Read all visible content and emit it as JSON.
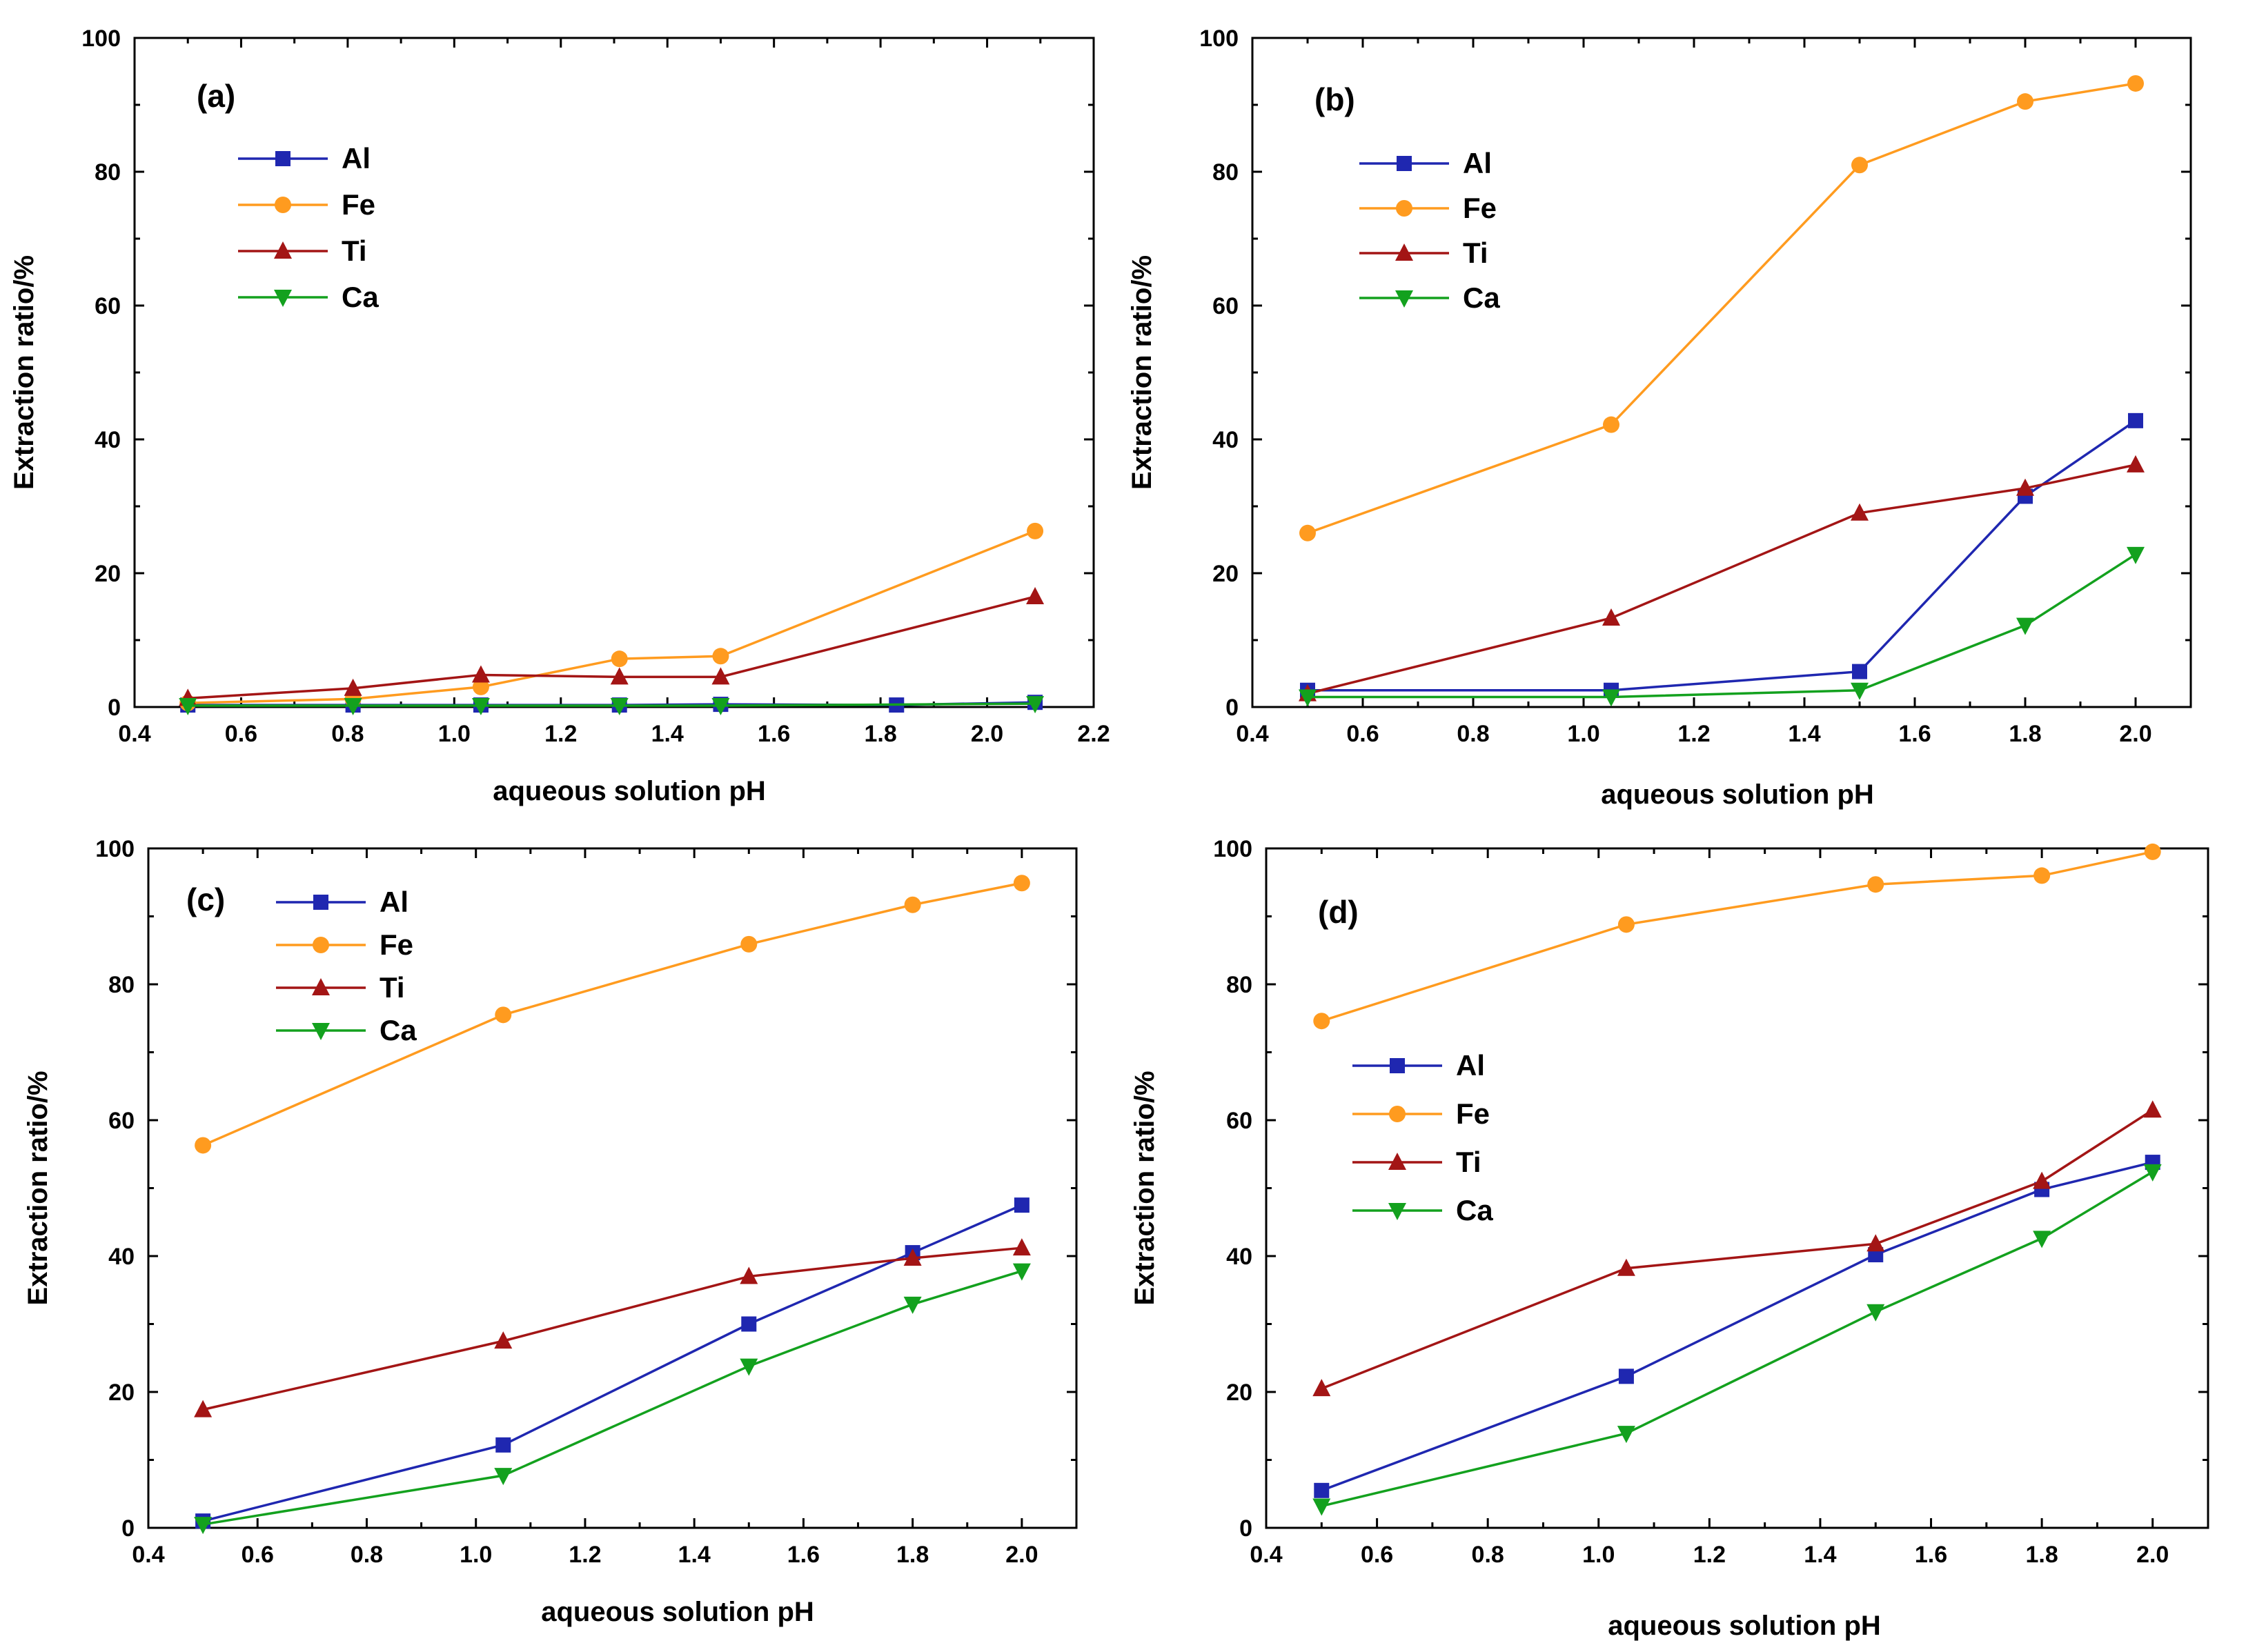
{
  "colors": {
    "Al": "#1f27b0",
    "Fe": "#ff9b1f",
    "Ti": "#a31515",
    "Ca": "#13a11e"
  },
  "chart_data": [
    {
      "type": "line",
      "panel": "(a)",
      "xlabel": "aqueous solution pH",
      "ylabel": "Extraction ratio/%",
      "xlim": [
        0.4,
        2.2
      ],
      "ylim": [
        0,
        100
      ],
      "xticks": [
        "0.4",
        "0.6",
        "0.8",
        "1.0",
        "1.2",
        "1.4",
        "1.6",
        "1.8",
        "2.0",
        "2.2"
      ],
      "yticks": [
        "0",
        "20",
        "40",
        "60",
        "80",
        "100"
      ],
      "legend": [
        "Al",
        "Fe",
        "Ti",
        "Ca"
      ],
      "series": [
        {
          "name": "Al",
          "x": [
            0.5,
            0.81,
            1.05,
            1.31,
            1.5,
            1.83,
            2.09
          ],
          "y": [
            0.3,
            0.3,
            0.3,
            0.3,
            0.4,
            0.3,
            0.7
          ]
        },
        {
          "name": "Fe",
          "x": [
            0.5,
            0.81,
            1.05,
            1.31,
            1.5,
            2.09
          ],
          "y": [
            0.6,
            1.2,
            3.0,
            7.2,
            7.6,
            26.3
          ]
        },
        {
          "name": "Ti",
          "x": [
            0.5,
            0.81,
            1.05,
            1.31,
            1.5,
            2.09
          ],
          "y": [
            1.3,
            2.8,
            4.8,
            4.5,
            4.5,
            16.5
          ]
        },
        {
          "name": "Ca",
          "x": [
            0.5,
            0.81,
            1.05,
            1.31,
            1.5,
            2.09
          ],
          "y": [
            0.2,
            0.2,
            0.2,
            0.2,
            0.2,
            0.5
          ]
        }
      ]
    },
    {
      "type": "line",
      "panel": "(b)",
      "xlabel": "aqueous solution pH",
      "ylabel": "Extraction ratio/%",
      "xlim": [
        0.4,
        2.1
      ],
      "ylim": [
        0,
        100
      ],
      "xticks": [
        "0.4",
        "0.6",
        "0.8",
        "1.0",
        "1.2",
        "1.4",
        "1.6",
        "1.8",
        "2.0"
      ],
      "yticks": [
        "0",
        "20",
        "40",
        "60",
        "80",
        "100"
      ],
      "legend": [
        "Al",
        "Fe",
        "Ti",
        "Ca"
      ],
      "series": [
        {
          "name": "Al",
          "x": [
            0.5,
            1.05,
            1.5,
            1.8,
            2.0
          ],
          "y": [
            2.5,
            2.5,
            5.3,
            31.5,
            42.8
          ]
        },
        {
          "name": "Fe",
          "x": [
            0.5,
            1.05,
            1.5,
            1.8,
            2.0
          ],
          "y": [
            26.0,
            42.2,
            81.0,
            90.5,
            93.2
          ]
        },
        {
          "name": "Ti",
          "x": [
            0.5,
            1.05,
            1.5,
            1.8,
            2.0
          ],
          "y": [
            2.0,
            13.3,
            29.0,
            32.7,
            36.2
          ]
        },
        {
          "name": "Ca",
          "x": [
            0.5,
            1.05,
            1.5,
            1.8,
            2.0
          ],
          "y": [
            1.5,
            1.5,
            2.5,
            12.2,
            22.8
          ]
        }
      ]
    },
    {
      "type": "line",
      "panel": "(c)",
      "xlabel": "aqueous solution pH",
      "ylabel": "Extraction ratio/%",
      "xlim": [
        0.4,
        2.1
      ],
      "ylim": [
        0,
        100
      ],
      "xticks": [
        "0.4",
        "0.6",
        "0.8",
        "1.0",
        "1.2",
        "1.4",
        "1.6",
        "1.8",
        "2.0"
      ],
      "yticks": [
        "0",
        "20",
        "40",
        "60",
        "80",
        "100"
      ],
      "legend": [
        "Al",
        "Fe",
        "Ti",
        "Ca"
      ],
      "series": [
        {
          "name": "Al",
          "x": [
            0.5,
            1.05,
            1.5,
            1.8,
            2.0
          ],
          "y": [
            1.0,
            12.2,
            30.0,
            40.5,
            47.5
          ]
        },
        {
          "name": "Fe",
          "x": [
            0.5,
            1.05,
            1.5,
            1.8,
            2.0
          ],
          "y": [
            56.3,
            75.5,
            85.9,
            91.7,
            94.9
          ]
        },
        {
          "name": "Ti",
          "x": [
            0.5,
            1.05,
            1.5,
            1.8,
            2.0
          ],
          "y": [
            17.4,
            27.5,
            37.0,
            39.7,
            41.2
          ]
        },
        {
          "name": "Ca",
          "x": [
            0.5,
            1.05,
            1.5,
            1.8,
            2.0
          ],
          "y": [
            0.5,
            7.7,
            23.8,
            32.9,
            37.8
          ]
        }
      ]
    },
    {
      "type": "line",
      "panel": "(d)",
      "xlabel": "aqueous solution pH",
      "ylabel": "Extraction ratio/%",
      "xlim": [
        0.4,
        2.1
      ],
      "ylim": [
        0,
        100
      ],
      "xticks": [
        "0.4",
        "0.6",
        "0.8",
        "1.0",
        "1.2",
        "1.4",
        "1.6",
        "1.8",
        "2.0"
      ],
      "yticks": [
        "0",
        "20",
        "40",
        "60",
        "80",
        "100"
      ],
      "legend": [
        "Al",
        "Fe",
        "Ti",
        "Ca"
      ],
      "series": [
        {
          "name": "Al",
          "x": [
            0.5,
            1.05,
            1.5,
            1.8,
            2.0
          ],
          "y": [
            5.5,
            22.3,
            40.2,
            49.8,
            53.8
          ]
        },
        {
          "name": "Fe",
          "x": [
            0.5,
            1.05,
            1.5,
            1.8,
            2.0
          ],
          "y": [
            74.6,
            88.8,
            94.7,
            96.0,
            99.5
          ]
        },
        {
          "name": "Ti",
          "x": [
            0.5,
            1.05,
            1.5,
            1.8,
            2.0
          ],
          "y": [
            20.5,
            38.2,
            41.8,
            51.0,
            61.5
          ]
        },
        {
          "name": "Ca",
          "x": [
            0.5,
            1.05,
            1.5,
            1.8,
            2.0
          ],
          "y": [
            3.2,
            13.9,
            31.8,
            42.6,
            52.4
          ]
        }
      ]
    }
  ]
}
